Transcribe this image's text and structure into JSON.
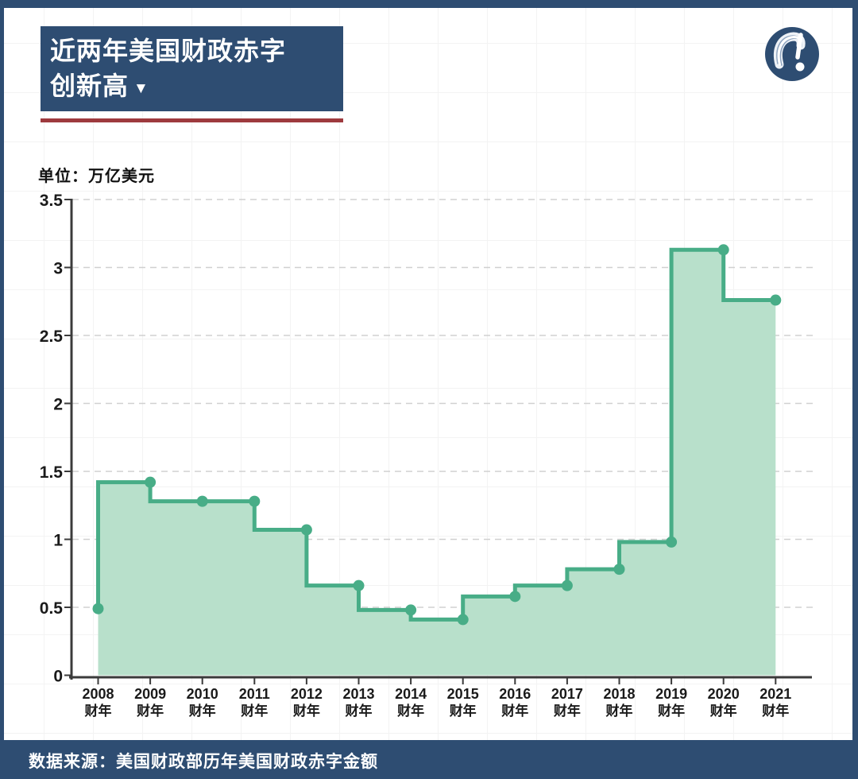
{
  "page": {
    "frame_color": "#2e4d72",
    "background_color": "#ffffff"
  },
  "header": {
    "title_line1": "近两年美国财政赤字",
    "title_line2": "创新高",
    "title_arrow": "▼",
    "title_bg_color": "#2e4d72",
    "accent_rule_color": "#9e3a3e"
  },
  "chart_data": {
    "type": "area",
    "step": "before",
    "title": "近两年美国财政赤字创新高",
    "unit_label": "单位：万亿美元",
    "categories": [
      "2008",
      "2009",
      "2010",
      "2011",
      "2012",
      "2013",
      "2014",
      "2015",
      "2016",
      "2017",
      "2018",
      "2019",
      "2020",
      "2021"
    ],
    "category_suffix": "财年",
    "values": [
      0.49,
      1.42,
      1.28,
      1.28,
      1.07,
      0.66,
      0.48,
      0.41,
      0.58,
      0.66,
      0.78,
      0.98,
      3.13,
      2.76
    ],
    "ylim": [
      0,
      3.5
    ],
    "yticks": [
      0,
      0.5,
      1,
      1.5,
      2,
      2.5,
      3,
      3.5
    ],
    "grid": "dashed-horizontal",
    "legend": "none",
    "line_color": "#48ad87",
    "fill_color": "#b8e0cb",
    "point_color": "#48ad87",
    "axis_color": "#3b3b3b",
    "gridline_color": "#d0d0d0"
  },
  "footer": {
    "source_text": "数据来源：美国财政部历年美国财政赤字金额",
    "bg_color": "#2e4d72"
  }
}
